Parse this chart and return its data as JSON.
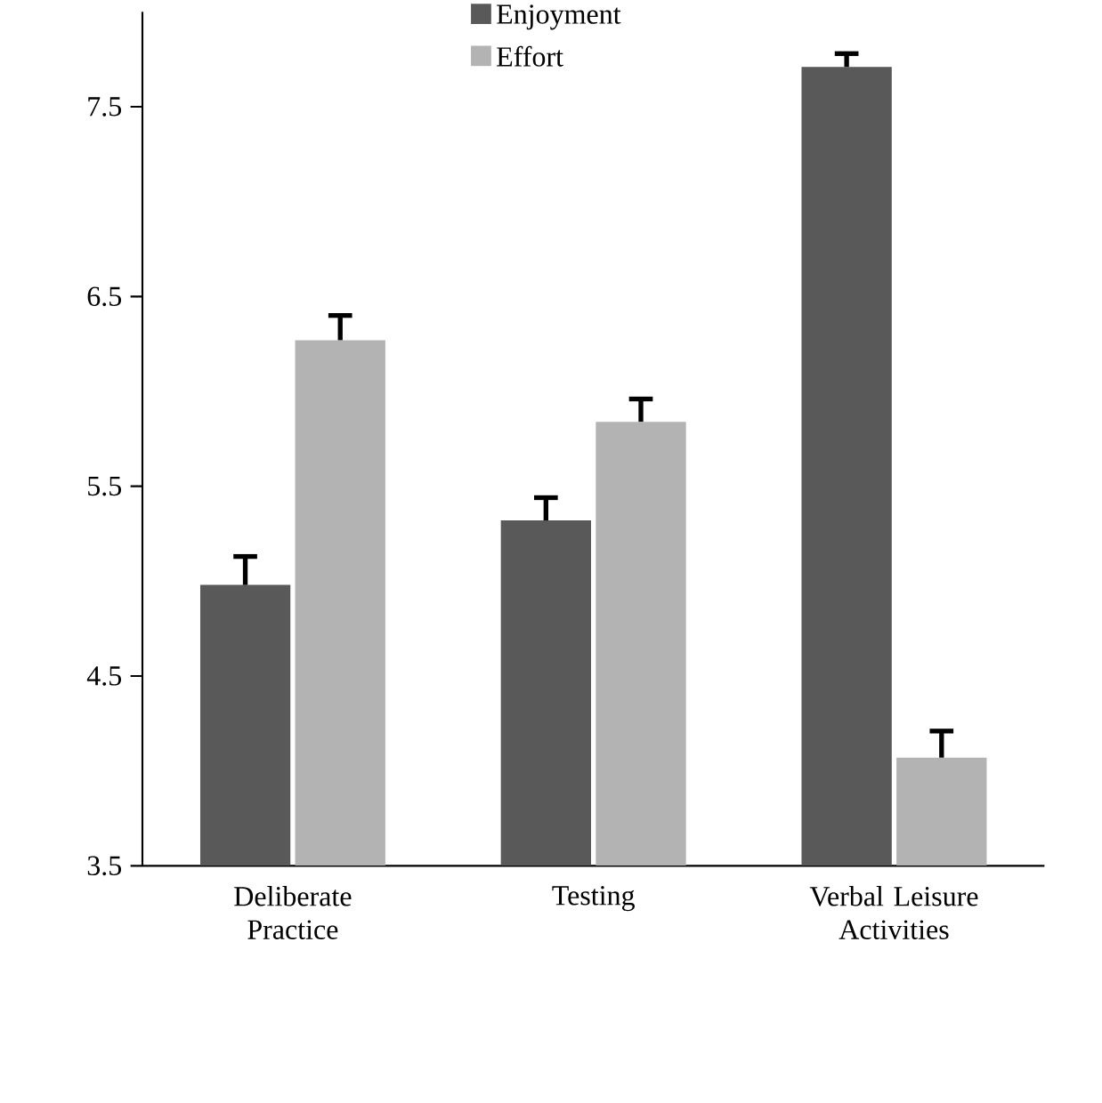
{
  "chart_data": {
    "type": "bar",
    "categories": [
      "Deliberate Practice",
      "Testing",
      "Verbal Leisure Activities"
    ],
    "series": [
      {
        "name": "Enjoyment",
        "color": "#595959",
        "values": [
          4.98,
          5.32,
          7.71
        ],
        "errors": [
          [
            4.98,
            5.13
          ],
          [
            5.32,
            5.44
          ],
          [
            7.71,
            7.78
          ]
        ]
      },
      {
        "name": "Effort",
        "color": "#b3b3b3",
        "values": [
          6.27,
          5.84,
          4.07
        ],
        "errors": [
          [
            6.27,
            6.4
          ],
          [
            5.84,
            5.96
          ],
          [
            4.07,
            4.21
          ]
        ]
      }
    ],
    "ylim": [
      3.5,
      8.0
    ],
    "yticks": [
      3.5,
      4.5,
      5.5,
      6.5,
      7.5
    ],
    "legend": "top",
    "grid": false
  }
}
